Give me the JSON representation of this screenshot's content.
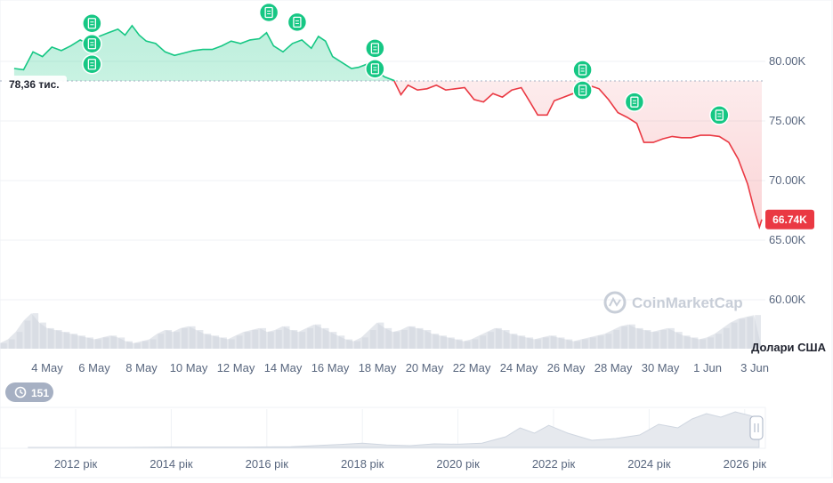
{
  "chart_data": {
    "type": "area",
    "y_unit_label": "Долари США",
    "reference_price": 78360,
    "reference_label": "78,36 тис.",
    "current_price_label": "66.74K",
    "ylim": [
      57000,
      88000
    ],
    "y_ticks": [
      {
        "value": 60000,
        "label": "60.00K"
      },
      {
        "value": 65000,
        "label": "65.00K"
      },
      {
        "value": 70000,
        "label": "70.00K"
      },
      {
        "value": 75000,
        "label": "75.00K"
      },
      {
        "value": 80000,
        "label": "80.00K"
      }
    ],
    "x_range": [
      2,
      34.3
    ],
    "x_ticks": [
      {
        "value": 4,
        "label": "4 May"
      },
      {
        "value": 6,
        "label": "6 May"
      },
      {
        "value": 8,
        "label": "8 May"
      },
      {
        "value": 10,
        "label": "10 May"
      },
      {
        "value": 12,
        "label": "12 May"
      },
      {
        "value": 14,
        "label": "14 May"
      },
      {
        "value": 16,
        "label": "16 May"
      },
      {
        "value": 18,
        "label": "18 May"
      },
      {
        "value": 20,
        "label": "20 May"
      },
      {
        "value": 22,
        "label": "22 May"
      },
      {
        "value": 24,
        "label": "24 May"
      },
      {
        "value": 26,
        "label": "26 May"
      },
      {
        "value": 28,
        "label": "28 May"
      },
      {
        "value": 30,
        "label": "30 May"
      },
      {
        "value": 32,
        "label": "1 Jun"
      },
      {
        "value": 34,
        "label": "3 Jun"
      }
    ],
    "x_tick_note": "x values are day-of-May (1 Jun = 32)",
    "price_points": [
      [
        2.6,
        79400
      ],
      [
        3.0,
        79300
      ],
      [
        3.4,
        80800
      ],
      [
        3.8,
        80400
      ],
      [
        4.2,
        81200
      ],
      [
        4.6,
        80900
      ],
      [
        5.0,
        81300
      ],
      [
        5.4,
        81800
      ],
      [
        5.8,
        81400
      ],
      [
        6.2,
        82100
      ],
      [
        6.6,
        82400
      ],
      [
        7.0,
        82700
      ],
      [
        7.3,
        82200
      ],
      [
        7.6,
        83000
      ],
      [
        7.9,
        82200
      ],
      [
        8.2,
        81700
      ],
      [
        8.6,
        81500
      ],
      [
        9.0,
        80800
      ],
      [
        9.4,
        80500
      ],
      [
        9.8,
        80700
      ],
      [
        10.2,
        80900
      ],
      [
        10.6,
        81000
      ],
      [
        11.0,
        81000
      ],
      [
        11.4,
        81300
      ],
      [
        11.8,
        81700
      ],
      [
        12.2,
        81500
      ],
      [
        12.6,
        81800
      ],
      [
        13.0,
        81900
      ],
      [
        13.3,
        82400
      ],
      [
        13.6,
        81300
      ],
      [
        14.0,
        80800
      ],
      [
        14.4,
        81500
      ],
      [
        14.8,
        81800
      ],
      [
        15.2,
        81100
      ],
      [
        15.5,
        82100
      ],
      [
        15.8,
        81700
      ],
      [
        16.1,
        80400
      ],
      [
        16.5,
        79900
      ],
      [
        16.9,
        79400
      ],
      [
        17.2,
        79500
      ],
      [
        17.6,
        79800
      ],
      [
        17.9,
        79300
      ],
      [
        18.3,
        78700
      ],
      [
        18.7,
        78400
      ],
      [
        19.0,
        77200
      ],
      [
        19.3,
        78000
      ],
      [
        19.7,
        77600
      ],
      [
        20.1,
        77700
      ],
      [
        20.5,
        78000
      ],
      [
        20.9,
        77600
      ],
      [
        21.3,
        77700
      ],
      [
        21.7,
        77800
      ],
      [
        22.1,
        76800
      ],
      [
        22.5,
        76600
      ],
      [
        22.9,
        77300
      ],
      [
        23.3,
        77000
      ],
      [
        23.7,
        77600
      ],
      [
        24.1,
        77800
      ],
      [
        24.5,
        76500
      ],
      [
        24.8,
        75500
      ],
      [
        25.2,
        75500
      ],
      [
        25.5,
        76700
      ],
      [
        25.9,
        77000
      ],
      [
        26.3,
        77300
      ],
      [
        26.7,
        77500
      ],
      [
        27.1,
        77900
      ],
      [
        27.4,
        77700
      ],
      [
        27.8,
        76800
      ],
      [
        28.2,
        75700
      ],
      [
        28.6,
        75300
      ],
      [
        29.0,
        74800
      ],
      [
        29.3,
        73200
      ],
      [
        29.7,
        73200
      ],
      [
        30.1,
        73500
      ],
      [
        30.5,
        73700
      ],
      [
        30.9,
        73600
      ],
      [
        31.3,
        73600
      ],
      [
        31.7,
        73800
      ],
      [
        32.1,
        73800
      ],
      [
        32.5,
        73700
      ],
      [
        32.9,
        73200
      ],
      [
        33.3,
        71800
      ],
      [
        33.7,
        69700
      ],
      [
        34.0,
        67400
      ],
      [
        34.2,
        66100
      ],
      [
        34.3,
        66740
      ]
    ],
    "volume_relative": [
      0.15,
      0.25,
      0.45,
      0.75,
      0.95,
      0.7,
      0.55,
      0.5,
      0.45,
      0.4,
      0.35,
      0.3,
      0.25,
      0.3,
      0.35,
      0.3,
      0.2,
      0.15,
      0.2,
      0.25,
      0.4,
      0.5,
      0.45,
      0.55,
      0.6,
      0.5,
      0.4,
      0.35,
      0.3,
      0.25,
      0.35,
      0.45,
      0.5,
      0.55,
      0.45,
      0.5,
      0.6,
      0.5,
      0.45,
      0.55,
      0.65,
      0.55,
      0.45,
      0.35,
      0.25,
      0.2,
      0.3,
      0.5,
      0.7,
      0.55,
      0.45,
      0.5,
      0.6,
      0.55,
      0.5,
      0.4,
      0.35,
      0.3,
      0.25,
      0.2,
      0.25,
      0.35,
      0.45,
      0.55,
      0.5,
      0.4,
      0.35,
      0.3,
      0.25,
      0.3,
      0.35,
      0.3,
      0.25,
      0.2,
      0.25,
      0.3,
      0.35,
      0.4,
      0.5,
      0.6,
      0.65,
      0.55,
      0.5,
      0.45,
      0.5,
      0.55,
      0.45,
      0.35,
      0.3,
      0.25,
      0.3,
      0.4,
      0.55,
      0.7,
      0.8,
      0.85,
      0.9
    ],
    "news_events": [
      5.9,
      5.9,
      5.9,
      13.4,
      14.6,
      17.9,
      17.9,
      26.7,
      26.7,
      28.9,
      32.5
    ],
    "events_badge": "151",
    "watermark": "CoinMarketCap",
    "navigator": {
      "x_ticks": [
        {
          "value": 2012,
          "label": "2012 рік"
        },
        {
          "value": 2014,
          "label": "2014 рік"
        },
        {
          "value": 2016,
          "label": "2016 рік"
        },
        {
          "value": 2018,
          "label": "2018 рік"
        },
        {
          "value": 2020,
          "label": "2020 рік"
        },
        {
          "value": 2022,
          "label": "2022 рік"
        },
        {
          "value": 2024,
          "label": "2024 рік"
        },
        {
          "value": 2026,
          "label": "2026 рік"
        }
      ],
      "history_relative": [
        [
          2011.0,
          0.0
        ],
        [
          2013.0,
          0.0
        ],
        [
          2014.0,
          0.01
        ],
        [
          2015.5,
          0.01
        ],
        [
          2016.5,
          0.02
        ],
        [
          2017.5,
          0.08
        ],
        [
          2018.0,
          0.12
        ],
        [
          2018.5,
          0.07
        ],
        [
          2019.0,
          0.05
        ],
        [
          2019.5,
          0.1
        ],
        [
          2020.0,
          0.09
        ],
        [
          2020.5,
          0.12
        ],
        [
          2021.0,
          0.3
        ],
        [
          2021.3,
          0.55
        ],
        [
          2021.6,
          0.4
        ],
        [
          2021.9,
          0.62
        ],
        [
          2022.3,
          0.4
        ],
        [
          2022.8,
          0.2
        ],
        [
          2023.3,
          0.25
        ],
        [
          2023.8,
          0.35
        ],
        [
          2024.2,
          0.65
        ],
        [
          2024.6,
          0.55
        ],
        [
          2024.9,
          0.8
        ],
        [
          2025.2,
          0.95
        ],
        [
          2025.5,
          0.85
        ],
        [
          2025.8,
          1.0
        ],
        [
          2026.1,
          0.9
        ],
        [
          2026.3,
          0.8
        ]
      ]
    }
  }
}
